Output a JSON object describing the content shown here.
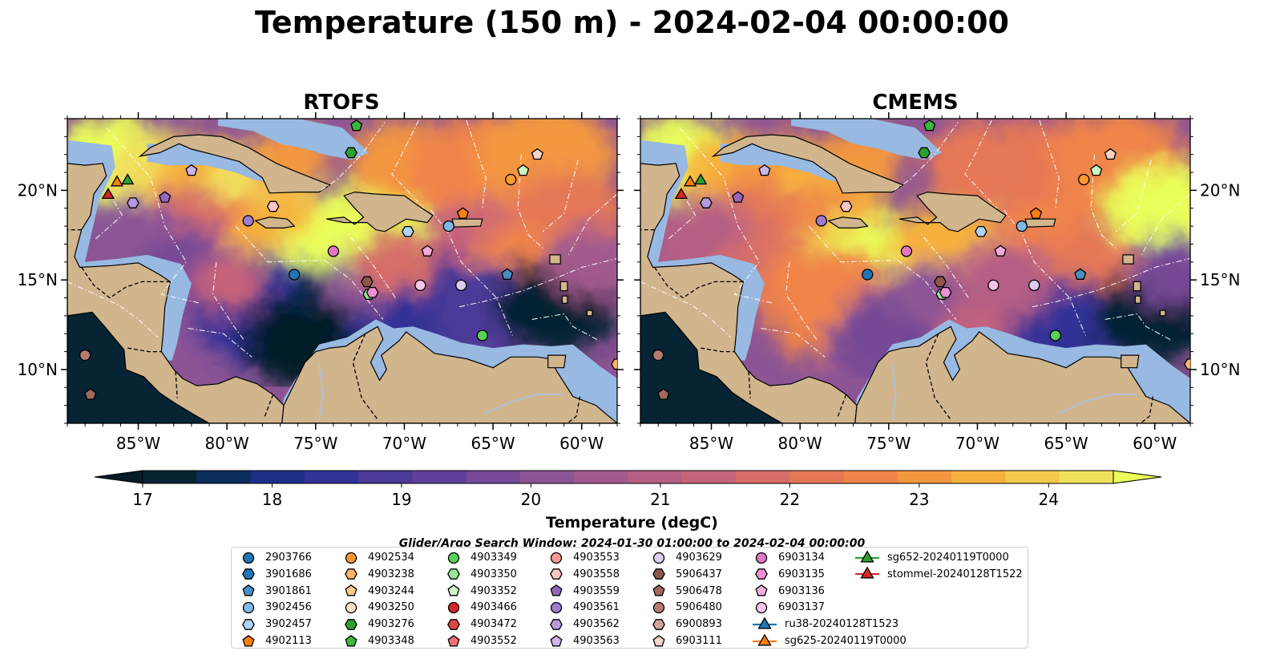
{
  "title": "Temperature (150 m) - 2024-02-04 00:00:00",
  "panels": {
    "left": {
      "title": "RTOFS"
    },
    "right": {
      "title": "CMEMS"
    }
  },
  "colorbar": {
    "label": "Temperature (degC)",
    "ticks": [
      "17",
      "18",
      "19",
      "20",
      "21",
      "22",
      "23",
      "24"
    ],
    "colors": [
      "#062433",
      "#0c2d5c",
      "#1b2f86",
      "#333296",
      "#4b3a98",
      "#5f3f99",
      "#764a97",
      "#8c5495",
      "#a25a8e",
      "#b55f84",
      "#c76479",
      "#d76e68",
      "#e57856",
      "#f08449",
      "#f49840",
      "#f6b13d",
      "#f3ca4c",
      "#f0e15d"
    ],
    "under_color": "#041b28",
    "over_color": "#e9ff5a"
  },
  "map": {
    "land_color": "#d1b58d",
    "shelf_color": "#98b9e2",
    "lon_ticks": [
      "85°W",
      "80°W",
      "75°W",
      "70°W",
      "65°W",
      "60°W"
    ],
    "lat_ticks": [
      "20°N",
      "15°N",
      "10°N"
    ]
  },
  "search_window": "Glider/Argo Search Window: 2024-01-30 01:00:00 to 2024-02-04 00:00:00",
  "chart_data": [
    {
      "type": "heatmap",
      "title": "RTOFS",
      "variable": "Temperature (degC)",
      "depth": "150 m",
      "xlim": [
        -89,
        -58
      ],
      "ylim": [
        7,
        24
      ],
      "vmin": 17,
      "vmax": 24.5,
      "warm_regions": [
        {
          "lon": -85,
          "lat": 21.5,
          "value": 24.3
        },
        {
          "lon": -77,
          "lat": 20,
          "value": 24
        },
        {
          "lon": -74.5,
          "lat": 15.5,
          "value": 24.3
        },
        {
          "lon": -72,
          "lat": 17.5,
          "value": 24
        },
        {
          "lon": -64,
          "lat": 20,
          "value": 23
        },
        {
          "lon": -62,
          "lat": 17,
          "value": 22.5
        }
      ],
      "cool_regions": [
        {
          "lon": -76,
          "lat": 11.5,
          "value": 17
        },
        {
          "lon": -69,
          "lat": 13,
          "value": 18
        },
        {
          "lon": -62,
          "lat": 13.5,
          "value": 17.5
        },
        {
          "lon": -86,
          "lat": 16,
          "value": 19
        }
      ]
    },
    {
      "type": "heatmap",
      "title": "CMEMS",
      "variable": "Temperature (degC)",
      "depth": "150 m",
      "xlim": [
        -89,
        -58
      ],
      "ylim": [
        7,
        24
      ],
      "vmin": 17,
      "vmax": 24.5,
      "warm_regions": [
        {
          "lon": -85,
          "lat": 21.5,
          "value": 24.3
        },
        {
          "lon": -77,
          "lat": 20.5,
          "value": 23.5
        },
        {
          "lon": -75,
          "lat": 15.8,
          "value": 24.5
        },
        {
          "lon": -71,
          "lat": 16.5,
          "value": 23.5
        },
        {
          "lon": -59,
          "lat": 18.5,
          "value": 24.2
        }
      ],
      "cool_regions": [
        {
          "lon": -74,
          "lat": 12,
          "value": 19
        },
        {
          "lon": -64,
          "lat": 12,
          "value": 18
        },
        {
          "lon": -59,
          "lat": 13,
          "value": 17
        }
      ]
    }
  ],
  "observations": [
    {
      "id": "2903766",
      "marker": "circle",
      "color": "#1f77b4",
      "lon": -76.2,
      "lat": 15.3
    },
    {
      "id": "3901686",
      "marker": "hexagon",
      "color": "#1f77b4",
      "lon": null,
      "lat": null
    },
    {
      "id": "3901861",
      "marker": "pentagon",
      "color": "#4a8ec2",
      "lon": -64.2,
      "lat": 15.3
    },
    {
      "id": "3902456",
      "marker": "circle",
      "color": "#7fb8e8",
      "lon": -67.5,
      "lat": 18.0
    },
    {
      "id": "3902457",
      "marker": "hexagon",
      "color": "#aed4f5",
      "lon": -69.8,
      "lat": 17.7
    },
    {
      "id": "4902113",
      "marker": "pentagon",
      "color": "#ff7f0e",
      "lon": -66.7,
      "lat": 18.7
    },
    {
      "id": "4902534",
      "marker": "circle",
      "color": "#ff9a2f",
      "lon": -64.0,
      "lat": 20.6
    },
    {
      "id": "4903238",
      "marker": "hexagon",
      "color": "#ffb366",
      "lon": -58.0,
      "lat": 10.3
    },
    {
      "id": "4903244",
      "marker": "pentagon",
      "color": "#ffc98f",
      "lon": null,
      "lat": null
    },
    {
      "id": "4903250",
      "marker": "circle",
      "color": "#ffe2c2",
      "lon": null,
      "lat": null
    },
    {
      "id": "4903276",
      "marker": "hexagon",
      "color": "#2ca02c",
      "lon": -73.0,
      "lat": 22.1
    },
    {
      "id": "4903348",
      "marker": "pentagon",
      "color": "#3cb83c",
      "lon": -72.7,
      "lat": 23.6
    },
    {
      "id": "4903349",
      "marker": "circle",
      "color": "#59d159",
      "lon": -65.6,
      "lat": 11.9
    },
    {
      "id": "4903350",
      "marker": "hexagon",
      "color": "#98e598",
      "lon": -72.0,
      "lat": 14.2
    },
    {
      "id": "4903352",
      "marker": "pentagon",
      "color": "#ccf5c0",
      "lon": -63.3,
      "lat": 21.1
    },
    {
      "id": "4903466",
      "marker": "circle",
      "color": "#d62728",
      "lon": null,
      "lat": null
    },
    {
      "id": "4903472",
      "marker": "hexagon",
      "color": "#e04646",
      "lon": null,
      "lat": null
    },
    {
      "id": "4903552",
      "marker": "pentagon",
      "color": "#f07070",
      "lon": null,
      "lat": null
    },
    {
      "id": "4903553",
      "marker": "circle",
      "color": "#ff9896",
      "lon": null,
      "lat": null
    },
    {
      "id": "4903558",
      "marker": "hexagon",
      "color": "#ffc6c4",
      "lon": -77.4,
      "lat": 19.1
    },
    {
      "id": "4903559",
      "marker": "pentagon",
      "color": "#9467bd",
      "lon": -83.5,
      "lat": 19.6
    },
    {
      "id": "4903561",
      "marker": "circle",
      "color": "#9d7bcf",
      "lon": -78.8,
      "lat": 18.3
    },
    {
      "id": "4903562",
      "marker": "hexagon",
      "color": "#b59ae0",
      "lon": -85.3,
      "lat": 19.3
    },
    {
      "id": "4903563",
      "marker": "pentagon",
      "color": "#c9b4eb",
      "lon": -82.0,
      "lat": 21.1
    },
    {
      "id": "4903629",
      "marker": "circle",
      "color": "#ddccf2",
      "lon": -66.8,
      "lat": 14.7
    },
    {
      "id": "5906437",
      "marker": "hexagon",
      "color": "#8c564b",
      "lon": -72.1,
      "lat": 14.9
    },
    {
      "id": "5906478",
      "marker": "pentagon",
      "color": "#a0695d",
      "lon": -87.7,
      "lat": 8.6
    },
    {
      "id": "5906480",
      "marker": "circle",
      "color": "#b57d70",
      "lon": -88.0,
      "lat": 10.8
    },
    {
      "id": "6900893",
      "marker": "hexagon",
      "color": "#d4a59a",
      "lon": null,
      "lat": null
    },
    {
      "id": "6903111",
      "marker": "pentagon",
      "color": "#f5d3c8",
      "lon": -62.5,
      "lat": 22.0
    },
    {
      "id": "6903134",
      "marker": "circle",
      "color": "#e377c2",
      "lon": -74.0,
      "lat": 16.6
    },
    {
      "id": "6903135",
      "marker": "hexagon",
      "color": "#ec92d2",
      "lon": -71.8,
      "lat": 14.3
    },
    {
      "id": "6903136",
      "marker": "pentagon",
      "color": "#f4add8",
      "lon": -68.7,
      "lat": 16.6
    },
    {
      "id": "6903137",
      "marker": "circle",
      "color": "#f7c3e8",
      "lon": -69.1,
      "lat": 14.7
    },
    {
      "id": "ru38-20240128T1523",
      "marker": "triangle",
      "color": "#1f77b4",
      "lon": null,
      "lat": null
    },
    {
      "id": "sg625-20240119T0000",
      "marker": "triangle",
      "color": "#ff7f0e",
      "lon": -86.2,
      "lat": 20.5
    },
    {
      "id": "sg652-20240119T0000",
      "marker": "triangle",
      "color": "#2ca02c",
      "lon": -85.6,
      "lat": 20.6
    },
    {
      "id": "stommel-20240128T1522",
      "marker": "triangle",
      "color": "#d62728",
      "lon": -86.7,
      "lat": 19.8
    }
  ]
}
